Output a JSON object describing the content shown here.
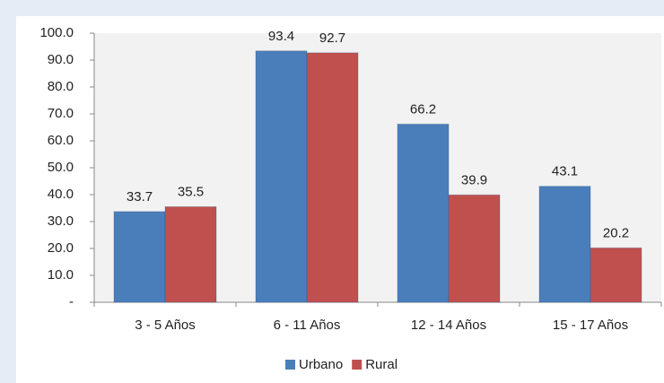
{
  "chart_data": {
    "type": "bar",
    "categories": [
      "3 - 5 Años",
      "6 - 11 Años",
      "12 - 14 Años",
      "15 - 17 Años"
    ],
    "series": [
      {
        "name": "Urbano",
        "color": "#4a7ebb",
        "values": [
          33.7,
          93.4,
          66.2,
          43.1
        ]
      },
      {
        "name": "Rural",
        "color": "#c0504d",
        "values": [
          35.5,
          92.7,
          39.9,
          20.2
        ]
      }
    ],
    "ylim": [
      0,
      100
    ],
    "yticks": [
      {
        "value": 0,
        "label": "-"
      },
      {
        "value": 10,
        "label": "10.0"
      },
      {
        "value": 20,
        "label": "20.0"
      },
      {
        "value": 30,
        "label": "30.0"
      },
      {
        "value": 40,
        "label": "40.0"
      },
      {
        "value": 50,
        "label": "50.0"
      },
      {
        "value": 60,
        "label": "60.0"
      },
      {
        "value": 70,
        "label": "70.0"
      },
      {
        "value": 80,
        "label": "80.0"
      },
      {
        "value": 90,
        "label": "90.0"
      },
      {
        "value": 100,
        "label": "100.0"
      }
    ],
    "legend": "bottom"
  }
}
